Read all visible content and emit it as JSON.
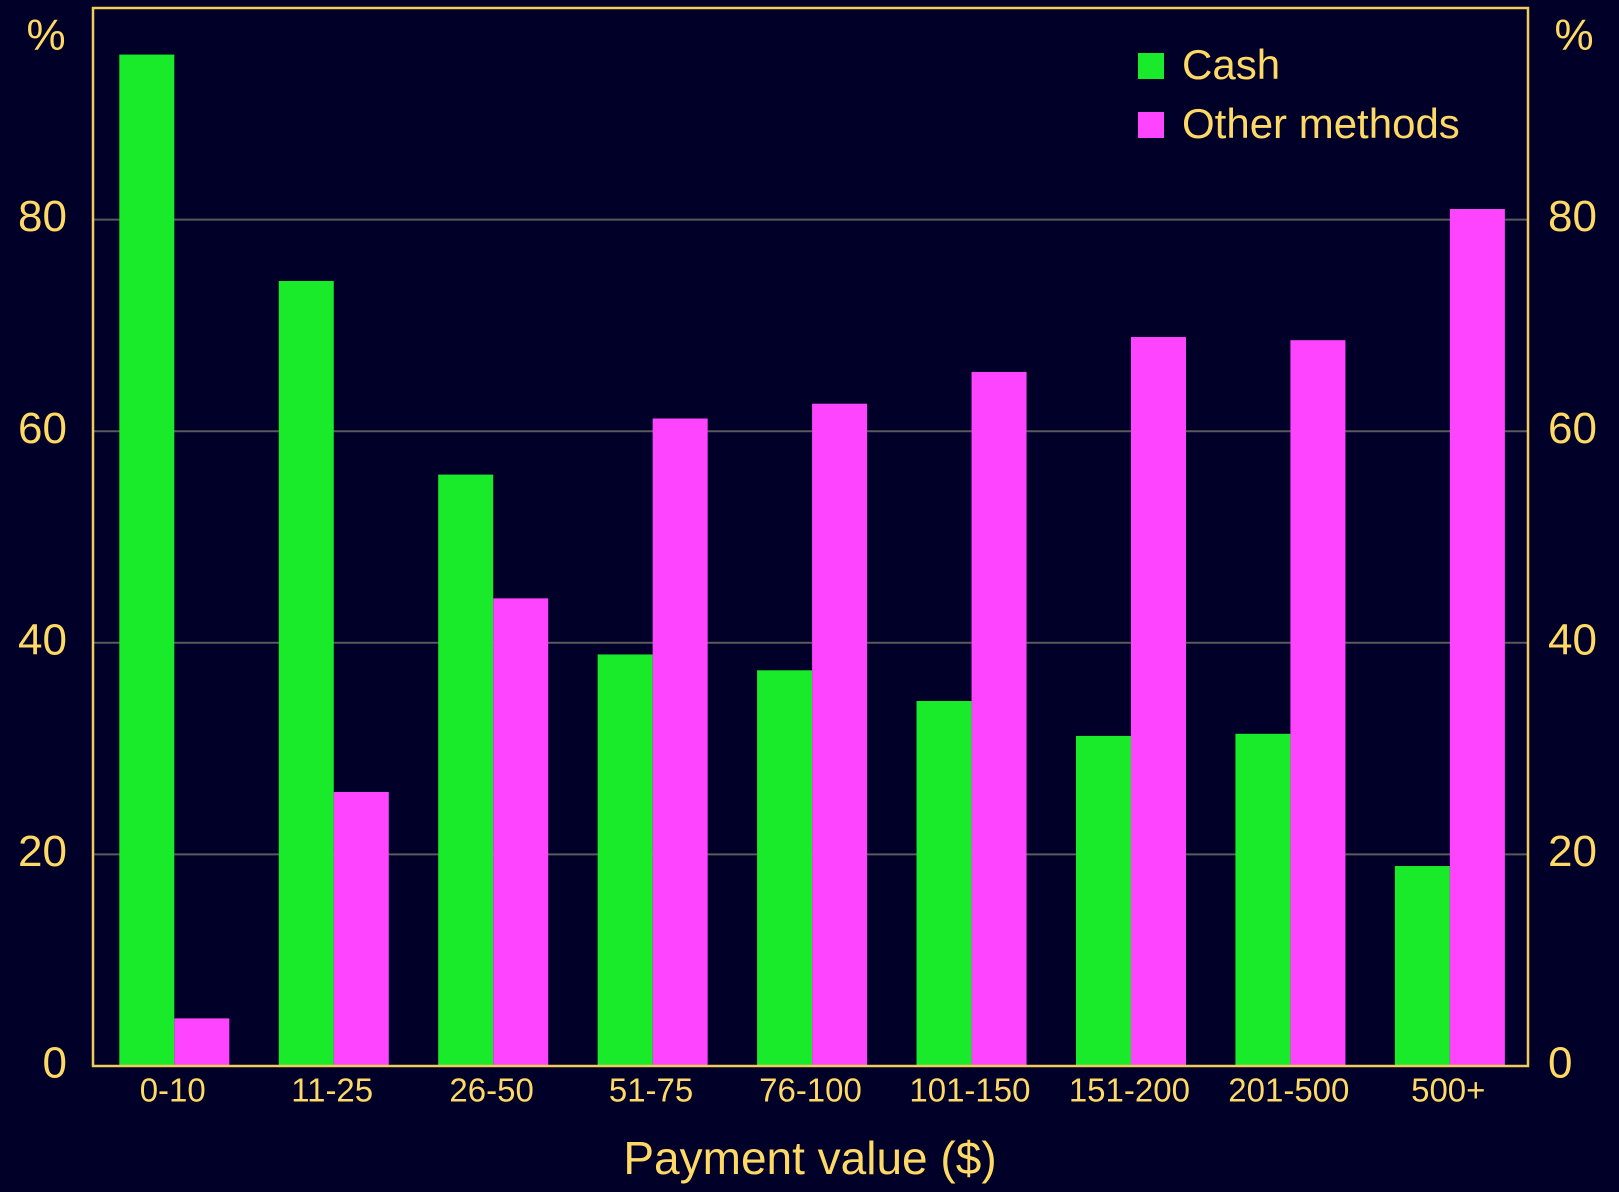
{
  "chart_data": {
    "type": "bar",
    "x_label": "Payment value ($)",
    "y_label": "%",
    "y2_label": "%",
    "categories": [
      "0-10",
      "11-25",
      "26-50",
      "51-75",
      "76-100",
      "101-150",
      "151-200",
      "201-500",
      "500+"
    ],
    "series": [
      {
        "name": "Cash",
        "color": "#19eb2a",
        "values": [
          95.6,
          74.2,
          55.9,
          38.9,
          37.4,
          34.5,
          31.2,
          31.4,
          18.9
        ]
      },
      {
        "name": "Other methods",
        "color": "#ff44ff",
        "values": [
          4.5,
          25.9,
          44.2,
          61.2,
          62.6,
          65.6,
          68.9,
          68.6,
          81.0
        ]
      }
    ],
    "ylim": [
      0,
      100
    ],
    "yticks": [
      0,
      20,
      40,
      60,
      80
    ],
    "grid": true,
    "legend": "upper right"
  }
}
